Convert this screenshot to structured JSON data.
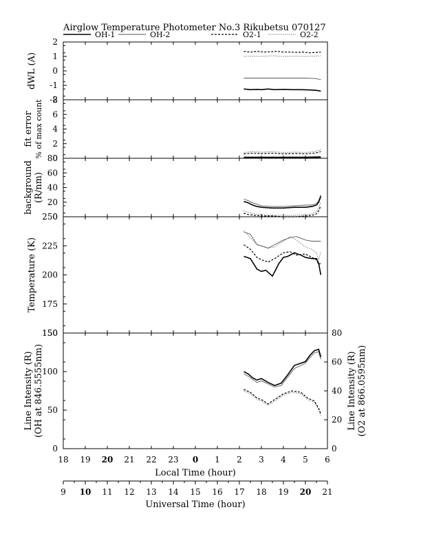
{
  "chart_data": {
    "type": "line",
    "title": "Airglow Temperature Photometer No.3   Rikubetsu   070127",
    "legend": [
      {
        "key": "oh1",
        "name": "OH-1",
        "color": "#000000",
        "style": "solid-thick"
      },
      {
        "key": "oh2",
        "name": "OH-2",
        "color": "#555555",
        "style": "solid-thin"
      },
      {
        "key": "o21",
        "name": "O2-1",
        "color": "#000000",
        "style": "dashed"
      },
      {
        "key": "o22",
        "name": "O2-2",
        "color": "#777777",
        "style": "dotted"
      }
    ],
    "x_local": {
      "label": "Local Time (hour)",
      "range": [
        18,
        30
      ],
      "ticks": [
        "18",
        "19",
        "20",
        "21",
        "22",
        "23",
        "0",
        "1",
        "2",
        "3",
        "4",
        "5",
        "6"
      ],
      "bold_ticks": [
        "20",
        "0"
      ]
    },
    "x_universal": {
      "label": "Universal Time (hour)",
      "ticks": [
        "9",
        "10",
        "11",
        "12",
        "13",
        "14",
        "15",
        "16",
        "17",
        "18",
        "19",
        "20",
        "21"
      ],
      "bold_ticks": [
        "10",
        "20"
      ]
    },
    "panels": [
      {
        "id": "dwl",
        "ylabel": [
          "dWL  (A)"
        ],
        "ylim": [
          -2,
          2
        ],
        "yticks": [
          "-2",
          "-1",
          "0",
          "1",
          "2"
        ],
        "series": {
          "oh1": {
            "x": [
              26.2,
              26.5,
              26.8,
              27.0,
              27.3,
              27.6,
              28.0,
              28.4,
              28.8,
              29.2,
              29.5,
              29.7
            ],
            "y": [
              -1.25,
              -1.3,
              -1.28,
              -1.3,
              -1.25,
              -1.3,
              -1.28,
              -1.3,
              -1.3,
              -1.32,
              -1.35,
              -1.4
            ]
          },
          "oh2": {
            "x": [
              26.2,
              26.8,
              27.5,
              28.2,
              28.9,
              29.4,
              29.7
            ],
            "y": [
              -0.5,
              -0.5,
              -0.5,
              -0.5,
              -0.5,
              -0.52,
              -0.6
            ]
          },
          "o21": {
            "x": [
              26.2,
              26.5,
              26.8,
              27.1,
              27.4,
              27.7,
              28.0,
              28.3,
              28.6,
              28.9,
              29.2,
              29.5,
              29.7
            ],
            "y": [
              1.35,
              1.3,
              1.35,
              1.3,
              1.32,
              1.35,
              1.3,
              1.3,
              1.28,
              1.3,
              1.25,
              1.28,
              1.3
            ]
          },
          "o22": {
            "x": [
              26.2,
              26.6,
              27.0,
              27.5,
              28.0,
              28.5,
              29.0,
              29.4,
              29.7
            ],
            "y": [
              1.0,
              1.02,
              1.0,
              1.05,
              1.0,
              1.02,
              1.0,
              1.02,
              1.05
            ]
          }
        }
      },
      {
        "id": "fit",
        "ylabel": [
          "fit error",
          "% of max count"
        ],
        "ylim": [
          0,
          8
        ],
        "yticks": [
          "0",
          "2",
          "4",
          "6",
          "8"
        ],
        "series": {
          "oh1": {
            "x": [
              26.2,
              27.0,
              28.0,
              29.0,
              29.7
            ],
            "y": [
              0.1,
              0.1,
              0.1,
              0.1,
              0.15
            ]
          },
          "oh2": {
            "x": [
              26.2,
              27.0,
              28.0,
              29.0,
              29.7
            ],
            "y": [
              0.2,
              0.2,
              0.2,
              0.2,
              0.25
            ]
          },
          "o21": {
            "x": [
              26.2,
              26.6,
              27.0,
              27.5,
              28.0,
              28.5,
              29.0,
              29.4,
              29.7
            ],
            "y": [
              0.6,
              0.7,
              0.65,
              0.7,
              0.6,
              0.65,
              0.6,
              0.7,
              0.9
            ]
          },
          "o22": {
            "x": [
              26.2,
              26.6,
              27.0,
              27.5,
              28.0,
              28.5,
              29.0,
              29.4,
              29.7
            ],
            "y": [
              0.8,
              0.9,
              0.85,
              0.9,
              0.8,
              0.85,
              0.8,
              0.9,
              1.2
            ]
          }
        }
      },
      {
        "id": "bg",
        "ylabel": [
          "background",
          "(R/nm)"
        ],
        "ylim": [
          0,
          80
        ],
        "yticks": [
          "0",
          "20",
          "40",
          "60",
          "80"
        ],
        "series": {
          "oh1": {
            "x": [
              26.2,
              26.4,
              26.6,
              26.8,
              27.0,
              27.5,
              28.0,
              28.5,
              29.0,
              29.3,
              29.5,
              29.6,
              29.7
            ],
            "y": [
              21,
              19,
              16,
              14,
              13,
              12,
              12,
              13,
              13,
              14,
              16,
              20,
              28
            ]
          },
          "oh2": {
            "x": [
              26.2,
              26.4,
              26.6,
              26.8,
              27.0,
              27.5,
              28.0,
              28.5,
              29.0,
              29.3,
              29.5,
              29.6,
              29.7
            ],
            "y": [
              24,
              22,
              19,
              17,
              15,
              14,
              14,
              15,
              16,
              16,
              18,
              22,
              30
            ]
          },
          "o21": {
            "x": [
              26.2,
              26.4,
              26.7,
              27.0,
              27.5,
              28.0,
              28.5,
              29.0,
              29.3,
              29.5,
              29.6,
              29.7
            ],
            "y": [
              5,
              3,
              2,
              1,
              1,
              0,
              0,
              1,
              2,
              4,
              8,
              15
            ]
          },
          "o22": {
            "x": [
              26.2,
              26.4,
              26.7,
              27.0,
              27.5,
              28.0,
              28.5,
              29.0,
              29.3,
              29.5,
              29.6,
              29.7
            ],
            "y": [
              8,
              6,
              4,
              3,
              2,
              2,
              2,
              3,
              4,
              7,
              12,
              20
            ]
          }
        }
      },
      {
        "id": "temp",
        "ylabel": [
          "Temperature (K)"
        ],
        "ylim": [
          150,
          250
        ],
        "yticks": [
          "150",
          "175",
          "200",
          "225",
          "250"
        ],
        "series": {
          "oh1": {
            "x": [
              26.2,
              26.5,
              26.8,
              27.0,
              27.2,
              27.5,
              27.8,
              28.0,
              28.2,
              28.5,
              28.8,
              29.0,
              29.3,
              29.5,
              29.6,
              29.7
            ],
            "y": [
              216,
              214,
              205,
              203,
              204,
              199,
              210,
              215,
              216,
              219,
              217,
              215,
              214,
              214,
              210,
              200
            ]
          },
          "oh2": {
            "x": [
              26.2,
              26.5,
              26.8,
              27.0,
              27.3,
              27.6,
              28.0,
              28.3,
              28.6,
              29.0,
              29.3,
              29.5,
              29.7
            ],
            "y": [
              237,
              235,
              226,
              225,
              223,
              226,
              230,
              232,
              233,
              230,
              229,
              229,
              229
            ]
          },
          "o21": {
            "x": [
              26.2,
              26.5,
              26.8,
              27.0,
              27.3,
              27.6,
              28.0,
              28.3,
              28.6,
              29.0,
              29.3,
              29.5,
              29.6,
              29.7
            ],
            "y": [
              226,
              222,
              215,
              213,
              211,
              214,
              219,
              220,
              217,
              218,
              215,
              213,
              209,
              210
            ]
          },
          "o22": {
            "x": [
              26.2,
              26.5,
              26.8,
              27.0,
              27.3,
              27.6,
              28.0,
              28.3,
              28.6,
              29.0,
              29.3,
              29.5,
              29.6,
              29.7
            ],
            "y": [
              238,
              232,
              226,
              225,
              223,
              224,
              229,
              233,
              230,
              224,
              222,
              219,
              213,
              220
            ]
          }
        }
      },
      {
        "id": "int",
        "ylabel": [
          "Line Intensity (R)",
          "(OH at 846.5555nm)"
        ],
        "ylabel_right": [
          "Line Intensity (R)",
          "(O2 at 866.0595nm)"
        ],
        "ylim": [
          0,
          150
        ],
        "ylim_right": [
          0,
          80
        ],
        "yticks": [
          "0",
          "50",
          "100",
          "150"
        ],
        "yticks_right": [
          "0",
          "20",
          "40",
          "60",
          "80"
        ],
        "series": {
          "oh1": {
            "x": [
              26.2,
              26.4,
              26.6,
              26.8,
              27.0,
              27.3,
              27.6,
              27.9,
              28.2,
              28.5,
              28.8,
              29.0,
              29.2,
              29.4,
              29.6,
              29.7
            ],
            "y": [
              100,
              97,
              92,
              89,
              91,
              86,
              82,
              85,
              96,
              108,
              111,
              113,
              121,
              127,
              129,
              119
            ]
          },
          "oh2": {
            "x": [
              26.2,
              26.4,
              26.6,
              26.8,
              27.0,
              27.3,
              27.6,
              27.9,
              28.2,
              28.5,
              28.8,
              29.0,
              29.2,
              29.4,
              29.6,
              29.7
            ],
            "y": [
              97,
              94,
              90,
              86,
              88,
              84,
              80,
              82,
              93,
              104,
              108,
              111,
              118,
              124,
              126,
              116
            ]
          },
          "o21": {
            "x": [
              26.2,
              26.5,
              26.8,
              27.0,
              27.3,
              27.6,
              28.0,
              28.4,
              28.8,
              29.1,
              29.4,
              29.6,
              29.7
            ],
            "y": [
              41,
              39,
              35,
              34,
              31,
              34,
              38,
              40,
              39,
              35,
              33,
              28,
              24
            ]
          },
          "o22": {
            "x": [
              26.2,
              26.5,
              26.8,
              27.0,
              27.3,
              27.6,
              28.0,
              28.4,
              28.8,
              29.1,
              29.4,
              29.6,
              29.7
            ],
            "y": [
              40,
              38,
              34,
              33,
              30,
              33,
              37,
              39,
              38,
              34,
              32,
              27,
              23
            ]
          }
        }
      }
    ]
  }
}
